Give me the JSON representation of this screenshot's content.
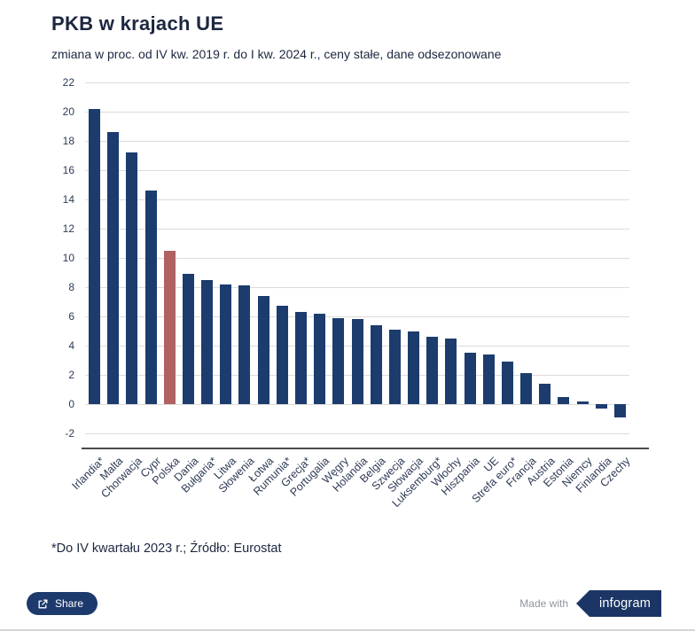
{
  "header": {
    "title": "PKB w krajach UE",
    "subtitle": "zmiana w proc. od IV kw. 2019 r. do I kw. 2024 r., ceny stałe, dane odsezonowane"
  },
  "chart_data": {
    "type": "bar",
    "title": "PKB w krajach UE",
    "subtitle": "zmiana w proc. od IV kw. 2019 r. do I kw. 2024 r., ceny stałe, dane odsezonowane",
    "categories": [
      "Irlandia*",
      "Malta",
      "Chorwacja",
      "Cypr",
      "Polska",
      "Dania",
      "Bułgaria*",
      "Litwa",
      "Słowenia",
      "Łotwa",
      "Rumunia*",
      "Grecja*",
      "Portugalia",
      "Węgry",
      "Holandia",
      "Belgia",
      "Szwecja",
      "Słowacja",
      "Luksemburg*",
      "Włochy",
      "Hiszpania",
      "UE",
      "Strefa euro*",
      "Francja",
      "Austria",
      "Estonia",
      "Niemcy",
      "Finlandia",
      "Czechy"
    ],
    "values": [
      20.2,
      18.6,
      17.2,
      14.6,
      10.5,
      8.9,
      8.5,
      8.2,
      8.1,
      7.4,
      6.7,
      6.3,
      6.2,
      5.9,
      5.8,
      5.4,
      5.1,
      5.0,
      4.6,
      4.5,
      3.5,
      3.4,
      2.9,
      2.1,
      1.4,
      0.5,
      0.2,
      -0.3,
      -0.9
    ],
    "highlight_category": "Polska",
    "bar_color": "#1c3c6e",
    "highlight_color": "#b06161",
    "xlabel": "",
    "ylabel": "",
    "ylim": [
      -2,
      22
    ],
    "ytick_step": 2,
    "grid": true,
    "legend": "none"
  },
  "footer": {
    "note": "*Do IV kwartału 2023 r.; Źródło: Eurostat",
    "share_label": "Share",
    "made_with": "Made with",
    "logo_text": "infogram"
  }
}
